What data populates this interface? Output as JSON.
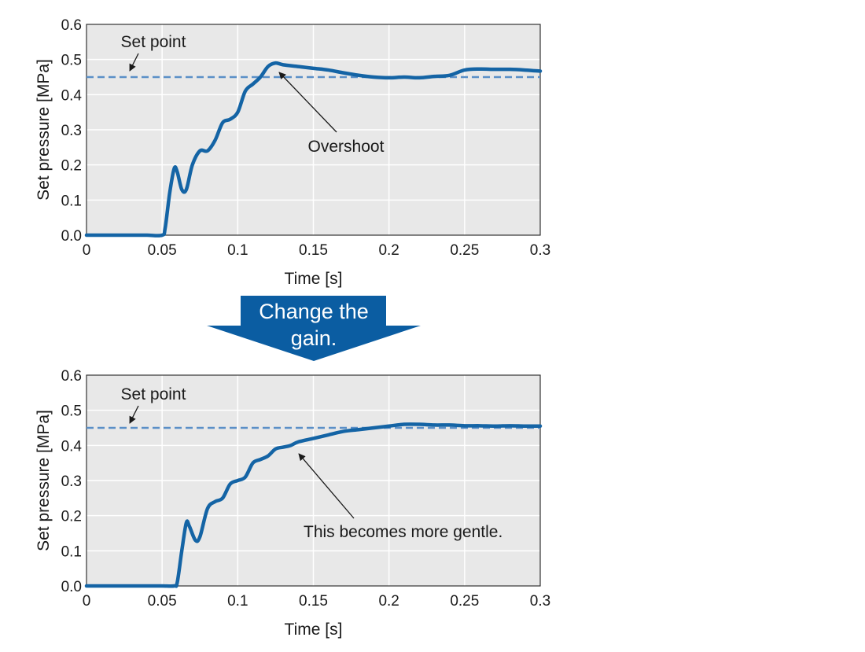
{
  "chart_data": [
    {
      "type": "line",
      "xlabel": "Time [s]",
      "ylabel": "Set pressure [MPa]",
      "xlim": [
        0,
        0.3
      ],
      "ylim": [
        0,
        0.6
      ],
      "x_ticks": [
        "0",
        "0.05",
        "0.1",
        "0.15",
        "0.2",
        "0.25",
        "0.3"
      ],
      "y_ticks": [
        "0.0",
        "0.1",
        "0.2",
        "0.3",
        "0.4",
        "0.5",
        "0.6"
      ],
      "grid": true,
      "setpoint": {
        "label": "Set point",
        "value": 0.45,
        "color": "#5b8fc7"
      },
      "annotation": {
        "text": "Overshoot",
        "x": 0.125,
        "y": 0.49
      },
      "series": [
        {
          "color": "#1464a5",
          "x": [
            0,
            0.01,
            0.02,
            0.03,
            0.04,
            0.05,
            0.052,
            0.055,
            0.058,
            0.06,
            0.063,
            0.066,
            0.07,
            0.075,
            0.08,
            0.085,
            0.09,
            0.095,
            0.1,
            0.105,
            0.11,
            0.115,
            0.12,
            0.125,
            0.13,
            0.14,
            0.15,
            0.16,
            0.17,
            0.18,
            0.19,
            0.2,
            0.21,
            0.22,
            0.23,
            0.24,
            0.25,
            0.26,
            0.27,
            0.28,
            0.29,
            0.3
          ],
          "y": [
            0,
            0,
            0,
            0,
            0,
            0,
            0.02,
            0.12,
            0.19,
            0.18,
            0.13,
            0.13,
            0.2,
            0.24,
            0.24,
            0.27,
            0.32,
            0.33,
            0.35,
            0.41,
            0.43,
            0.45,
            0.48,
            0.49,
            0.485,
            0.48,
            0.475,
            0.47,
            0.462,
            0.455,
            0.45,
            0.448,
            0.45,
            0.448,
            0.452,
            0.455,
            0.47,
            0.473,
            0.472,
            0.472,
            0.47,
            0.467
          ]
        }
      ]
    },
    {
      "type": "line",
      "xlabel": "Time [s]",
      "ylabel": "Set pressure [MPa]",
      "xlim": [
        0,
        0.3
      ],
      "ylim": [
        0,
        0.6
      ],
      "x_ticks": [
        "0",
        "0.05",
        "0.1",
        "0.15",
        "0.2",
        "0.25",
        "0.3"
      ],
      "y_ticks": [
        "0.0",
        "0.1",
        "0.2",
        "0.3",
        "0.4",
        "0.5",
        "0.6"
      ],
      "grid": true,
      "setpoint": {
        "label": "Set point",
        "value": 0.45,
        "color": "#5b8fc7"
      },
      "annotation": {
        "text": "This becomes more gentle.",
        "x": 0.14,
        "y": 0.4
      },
      "series": [
        {
          "color": "#1464a5",
          "x": [
            0,
            0.01,
            0.02,
            0.03,
            0.04,
            0.05,
            0.058,
            0.06,
            0.063,
            0.066,
            0.068,
            0.072,
            0.075,
            0.08,
            0.085,
            0.09,
            0.095,
            0.1,
            0.105,
            0.11,
            0.115,
            0.12,
            0.125,
            0.13,
            0.135,
            0.14,
            0.15,
            0.16,
            0.17,
            0.18,
            0.19,
            0.2,
            0.21,
            0.22,
            0.23,
            0.24,
            0.25,
            0.26,
            0.27,
            0.28,
            0.29,
            0.3
          ],
          "y": [
            0,
            0,
            0,
            0,
            0,
            0,
            0,
            0.01,
            0.1,
            0.18,
            0.17,
            0.13,
            0.14,
            0.22,
            0.24,
            0.25,
            0.29,
            0.3,
            0.31,
            0.35,
            0.36,
            0.37,
            0.39,
            0.395,
            0.4,
            0.41,
            0.42,
            0.43,
            0.44,
            0.445,
            0.45,
            0.455,
            0.46,
            0.46,
            0.458,
            0.458,
            0.456,
            0.456,
            0.455,
            0.456,
            0.455,
            0.455
          ]
        }
      ]
    }
  ],
  "transition_arrow": {
    "lines": [
      "Change the",
      "gain."
    ],
    "color": "#0b5da2",
    "text_color": "#ffffff"
  },
  "colors": {
    "plot_background": "#e8e8e8",
    "grid": "#ffffff",
    "text": "#1a1a1a"
  }
}
